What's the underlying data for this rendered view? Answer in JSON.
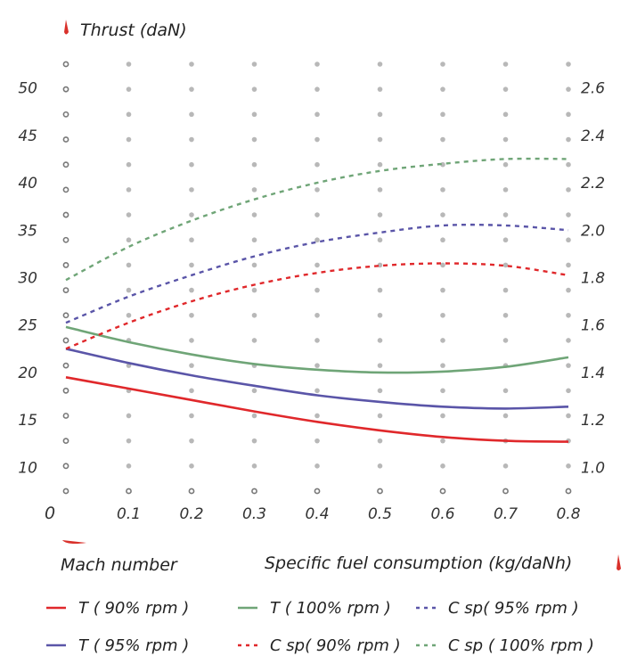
{
  "chart_data": {
    "type": "line",
    "ylabel_left": "Thrust (daN)",
    "xlabel": "Mach number",
    "ylabel_right": "Specific fuel consumption (kg/daNh)",
    "origin_label": "0",
    "x_ticks": [
      "0.1",
      "0.2",
      "0.3",
      "0.4",
      "0.5",
      "0.6",
      "0.7",
      "0.8"
    ],
    "y_left_ticks": [
      "10",
      "15",
      "20",
      "25",
      "30",
      "35",
      "40",
      "45",
      "50"
    ],
    "y_right_ticks": [
      "1.0",
      "1.2",
      "1.4",
      "1.6",
      "1.8",
      "2.0",
      "2.2",
      "2.4",
      "2.6"
    ],
    "xlim": [
      0,
      0.8
    ],
    "ylim_left": [
      7.5,
      52.5
    ],
    "ylim_right": [
      0.9,
      2.7
    ],
    "grid": "dotted",
    "series": [
      {
        "name": "T ( 90% rpm )",
        "axis": "left",
        "dash": false,
        "color": "#e0282b",
        "x": [
          0,
          0.1,
          0.2,
          0.3,
          0.4,
          0.5,
          0.6,
          0.7,
          0.8
        ],
        "y": [
          19.5,
          18.3,
          17.1,
          15.9,
          14.8,
          13.9,
          13.2,
          12.8,
          12.7
        ]
      },
      {
        "name": "T ( 100% rpm )",
        "axis": "left",
        "dash": false,
        "color": "#6fa577",
        "x": [
          0,
          0.1,
          0.2,
          0.3,
          0.4,
          0.5,
          0.6,
          0.7,
          0.8
        ],
        "y": [
          24.8,
          23.2,
          21.9,
          20.9,
          20.3,
          20.0,
          20.1,
          20.6,
          21.6
        ]
      },
      {
        "name": "C sp( 95% rpm )",
        "axis": "right",
        "dash": true,
        "color": "#5a55a8",
        "x": [
          0,
          0.1,
          0.2,
          0.3,
          0.4,
          0.5,
          0.6,
          0.7,
          0.8
        ],
        "y": [
          1.61,
          1.72,
          1.81,
          1.89,
          1.95,
          1.99,
          2.02,
          2.02,
          2.0
        ]
      },
      {
        "name": "T ( 95% rpm )",
        "axis": "left",
        "dash": false,
        "color": "#5a55a8",
        "x": [
          0,
          0.1,
          0.2,
          0.3,
          0.4,
          0.5,
          0.6,
          0.7,
          0.8
        ],
        "y": [
          22.5,
          21.0,
          19.7,
          18.6,
          17.6,
          16.9,
          16.4,
          16.2,
          16.4
        ]
      },
      {
        "name": "C sp( 90% rpm )",
        "axis": "right",
        "dash": true,
        "color": "#e0282b",
        "x": [
          0,
          0.1,
          0.2,
          0.3,
          0.4,
          0.5,
          0.6,
          0.7,
          0.8
        ],
        "y": [
          1.5,
          1.61,
          1.7,
          1.77,
          1.82,
          1.85,
          1.86,
          1.85,
          1.81
        ]
      },
      {
        "name": "C sp ( 100% rpm )",
        "axis": "right",
        "dash": true,
        "color": "#6fa577",
        "x": [
          0,
          0.1,
          0.2,
          0.3,
          0.4,
          0.5,
          0.6,
          0.7,
          0.8
        ],
        "y": [
          1.79,
          1.93,
          2.04,
          2.13,
          2.2,
          2.25,
          2.28,
          2.3,
          2.3
        ]
      }
    ],
    "legend_position": "bottom"
  }
}
